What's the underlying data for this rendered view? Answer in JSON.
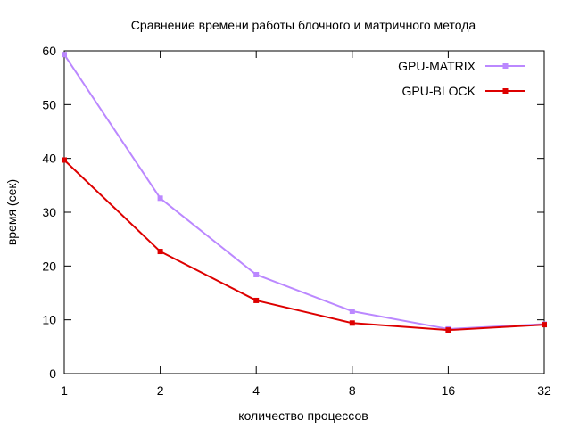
{
  "chart_data": {
    "type": "line",
    "title": "Сравнение времени работы блочного и матричного метода",
    "xlabel": "количество процессов",
    "ylabel": "время (сек)",
    "x_scale": "log2",
    "x": [
      1,
      2,
      4,
      8,
      16,
      32
    ],
    "x_tick_labels": [
      "1",
      "2",
      "4",
      "8",
      "16",
      "32"
    ],
    "ylim": [
      0,
      60
    ],
    "y_ticks": [
      0,
      10,
      20,
      30,
      40,
      50,
      60
    ],
    "y_tick_labels": [
      "0",
      "10",
      "20",
      "30",
      "40",
      "50",
      "60"
    ],
    "grid": false,
    "legend_position": "top-right",
    "series": [
      {
        "name": "GPU-MATRIX",
        "color": "#bb88ff",
        "marker": "square",
        "values": [
          59.3,
          32.6,
          18.4,
          11.6,
          8.3,
          9.2
        ]
      },
      {
        "name": "GPU-BLOCK",
        "color": "#dd0000",
        "marker": "square",
        "values": [
          39.7,
          22.7,
          13.6,
          9.4,
          8.1,
          9.1
        ]
      }
    ]
  }
}
